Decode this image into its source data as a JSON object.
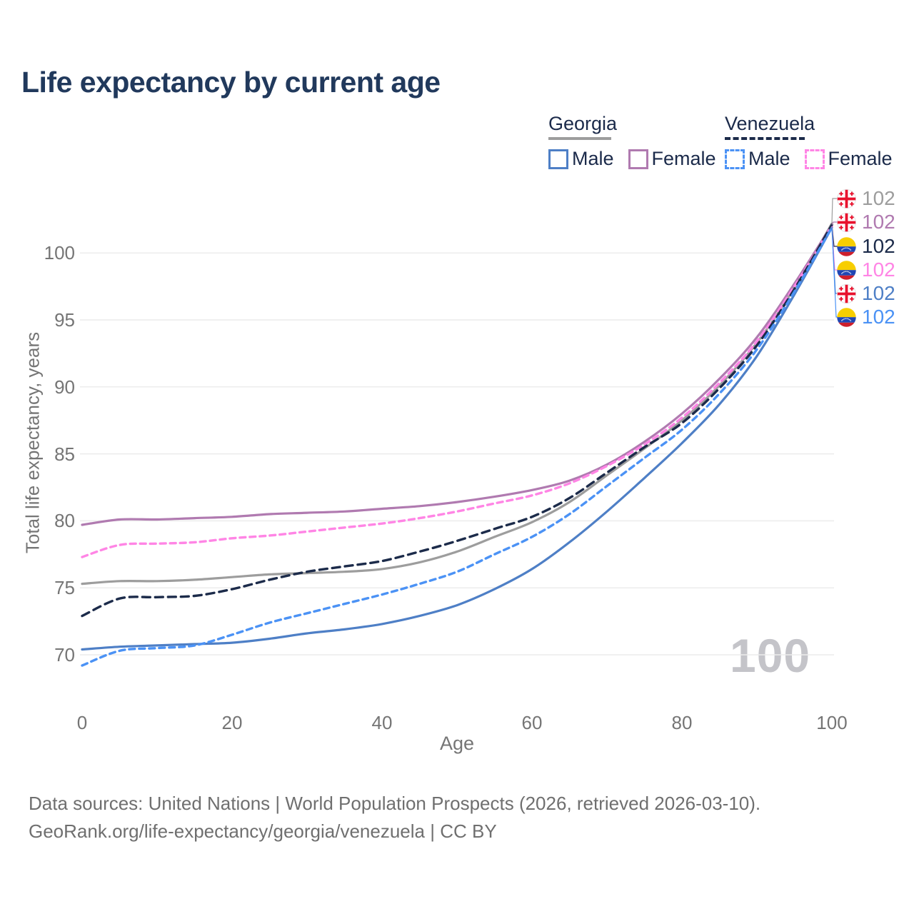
{
  "title": "Life expectancy by current age",
  "legend": {
    "groups": [
      {
        "country": "Georgia",
        "line_style": "solid",
        "underline_color": "#9d9d9d",
        "items": [
          {
            "label": "Male",
            "color": "#4e7fc6"
          },
          {
            "label": "Female",
            "color": "#b07ab0"
          }
        ]
      },
      {
        "country": "Venezuela",
        "line_style": "dashed",
        "underline_color": "#1c2b4a",
        "items": [
          {
            "label": "Male",
            "color": "#4b92f5"
          },
          {
            "label": "Female",
            "color": "#ff85e5"
          }
        ]
      }
    ]
  },
  "axes": {
    "y_title": "Total life expectancy, years",
    "x_title": "Age",
    "y_ticks": [
      70,
      75,
      80,
      85,
      90,
      95,
      100
    ],
    "x_ticks": [
      0,
      20,
      40,
      60,
      80,
      100
    ]
  },
  "watermark": "100",
  "footer": {
    "line1": "Data sources: United Nations | World Population Prospects (2026, retrieved 2026-03-10).",
    "line2": "GeoRank.org/life-expectancy/georgia/venezuela | CC BY"
  },
  "colors": {
    "title_text": "#21395c",
    "legend_text": "#1b2a4a",
    "axis_text": "#757575",
    "gridline": "#ececec",
    "watermark": "#c4c4c9",
    "footer_text": "#6f6f6f",
    "georgia_total": "#9d9d9d",
    "georgia_female": "#b07ab0",
    "georgia_male": "#4e7fc6",
    "venezuela_total": "#1c2b4a",
    "venezuela_female": "#ff85e5",
    "venezuela_male": "#4b92f5"
  },
  "chart_data": {
    "type": "line",
    "title": "Life expectancy by current age",
    "xlabel": "Age",
    "ylabel": "Total life expectancy, years",
    "xlim": [
      0,
      100
    ],
    "ylim": [
      68.5,
      103
    ],
    "grid": "horizontal-only",
    "x": [
      0,
      5,
      10,
      15,
      20,
      25,
      30,
      35,
      40,
      45,
      50,
      55,
      60,
      65,
      70,
      75,
      80,
      85,
      90,
      95,
      100
    ],
    "series": [
      {
        "name": "Georgia Total",
        "country": "Georgia",
        "sex": "Total",
        "style": "solid",
        "color": "#9d9d9d",
        "dash": null,
        "values": [
          75.3,
          75.5,
          75.5,
          75.6,
          75.8,
          76.0,
          76.1,
          76.2,
          76.4,
          76.9,
          77.7,
          78.8,
          79.9,
          81.4,
          83.4,
          85.4,
          87.5,
          90.1,
          93.3,
          97.4,
          102.2
        ]
      },
      {
        "name": "Georgia Female",
        "country": "Georgia",
        "sex": "Female",
        "style": "solid",
        "color": "#b07ab0",
        "dash": null,
        "values": [
          79.7,
          80.1,
          80.1,
          80.2,
          80.3,
          80.5,
          80.6,
          80.7,
          80.9,
          81.1,
          81.4,
          81.8,
          82.3,
          83.0,
          84.2,
          85.9,
          88.0,
          90.6,
          93.7,
          97.7,
          102.1
        ]
      },
      {
        "name": "Venezuela Female",
        "country": "Venezuela",
        "sex": "Female",
        "style": "dashed",
        "color": "#ff85e5",
        "dash": "8 6",
        "values": [
          77.3,
          78.2,
          78.3,
          78.4,
          78.7,
          78.9,
          79.2,
          79.5,
          79.8,
          80.2,
          80.7,
          81.3,
          81.9,
          82.8,
          84.1,
          85.7,
          87.7,
          90.3,
          93.4,
          97.5,
          102.0
        ]
      },
      {
        "name": "Venezuela Total",
        "country": "Venezuela",
        "sex": "Total",
        "style": "dashed",
        "color": "#1c2b4a",
        "dash": "11 7",
        "values": [
          72.9,
          74.2,
          74.3,
          74.4,
          74.9,
          75.6,
          76.2,
          76.6,
          77.0,
          77.7,
          78.5,
          79.4,
          80.3,
          81.7,
          83.6,
          85.5,
          87.3,
          89.9,
          93.1,
          97.3,
          102.1
        ]
      },
      {
        "name": "Georgia Male",
        "country": "Georgia",
        "sex": "Male",
        "style": "solid",
        "color": "#4e7fc6",
        "dash": null,
        "values": [
          70.4,
          70.6,
          70.7,
          70.8,
          70.9,
          71.2,
          71.6,
          71.9,
          72.3,
          72.9,
          73.7,
          74.9,
          76.4,
          78.4,
          80.7,
          83.2,
          85.8,
          88.7,
          92.3,
          96.9,
          101.9
        ]
      },
      {
        "name": "Venezuela Male",
        "country": "Venezuela",
        "sex": "Male",
        "style": "dashed",
        "color": "#4b92f5",
        "dash": "8 6",
        "values": [
          69.2,
          70.3,
          70.5,
          70.7,
          71.5,
          72.4,
          73.1,
          73.8,
          74.5,
          75.3,
          76.2,
          77.5,
          78.8,
          80.5,
          82.6,
          84.7,
          86.8,
          89.5,
          92.8,
          97.1,
          101.9
        ]
      }
    ],
    "end_labels": [
      {
        "series": "Georgia Total",
        "flag": "georgia",
        "value": "102",
        "color": "#9d9d9d"
      },
      {
        "series": "Georgia Female",
        "flag": "georgia",
        "value": "102",
        "color": "#b07ab0"
      },
      {
        "series": "Venezuela Total",
        "flag": "venezuela",
        "value": "102",
        "color": "#1c2b4a"
      },
      {
        "series": "Venezuela Female",
        "flag": "venezuela",
        "value": "102",
        "color": "#ff85e5"
      },
      {
        "series": "Georgia Male",
        "flag": "georgia",
        "value": "102",
        "color": "#4e7fc6"
      },
      {
        "series": "Venezuela Male",
        "flag": "venezuela",
        "value": "102",
        "color": "#4b92f5"
      }
    ]
  }
}
